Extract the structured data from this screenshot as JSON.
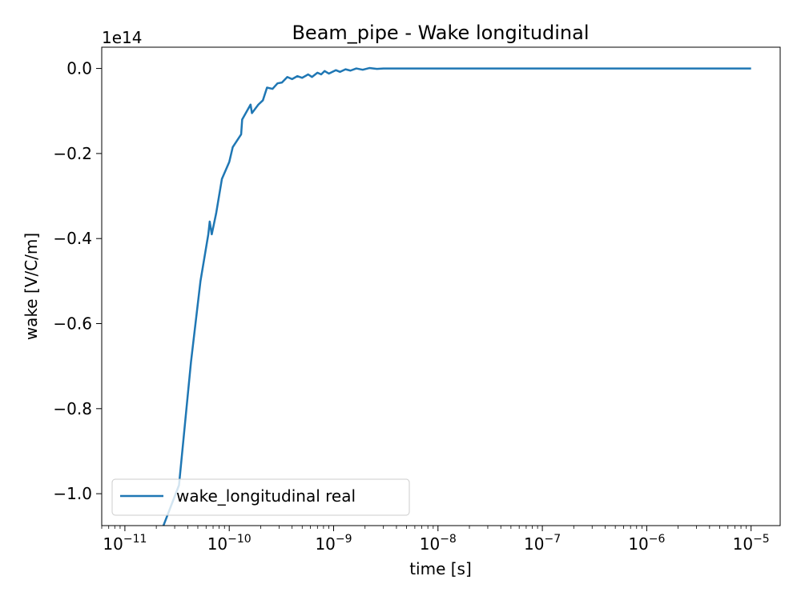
{
  "chart_data": {
    "type": "line",
    "title": "Beam_pipe - Wake longitudinal",
    "xlabel": "time [s]",
    "ylabel": "wake [V/C/m]",
    "x_scale": "log",
    "xlim": [
      6e-12,
      1.9e-05
    ],
    "ylim": [
      -1.075,
      0.05
    ],
    "y_multiplier": "1e14",
    "x_ticks": [
      {
        "value": 1e-11,
        "base": "10",
        "exp": "−11"
      },
      {
        "value": 1e-10,
        "base": "10",
        "exp": "−10"
      },
      {
        "value": 1e-09,
        "base": "10",
        "exp": "−9"
      },
      {
        "value": 1e-08,
        "base": "10",
        "exp": "−8"
      },
      {
        "value": 1e-07,
        "base": "10",
        "exp": "−7"
      },
      {
        "value": 1e-06,
        "base": "10",
        "exp": "−6"
      },
      {
        "value": 1e-05,
        "base": "10",
        "exp": "−5"
      }
    ],
    "y_ticks": [
      {
        "value": 0.0,
        "label": "0.0"
      },
      {
        "value": -0.2,
        "label": "−0.2"
      },
      {
        "value": -0.4,
        "label": "−0.4"
      },
      {
        "value": -0.6,
        "label": "−0.6"
      },
      {
        "value": -0.8,
        "label": "−0.8"
      },
      {
        "value": -1.0,
        "label": "−1.0"
      }
    ],
    "legend_position": "lower-left",
    "series": [
      {
        "name": "wake_longitudinal real",
        "color": "#1f77b4",
        "x": [
          1e-11,
          1.6e-11,
          2.3e-11,
          3.3e-11,
          4.3e-11,
          5.3e-11,
          6.3e-11,
          6.5e-11,
          6.8e-11,
          7.5e-11,
          8.5e-11,
          1e-10,
          1.08e-10,
          1.3e-10,
          1.33e-10,
          1.6e-10,
          1.65e-10,
          1.9e-10,
          2.1e-10,
          2.3e-10,
          2.6e-10,
          2.9e-10,
          3.2e-10,
          3.6e-10,
          4e-10,
          4.5e-10,
          5e-10,
          5.7e-10,
          6.2e-10,
          7e-10,
          7.6e-10,
          8.2e-10,
          9e-10,
          1.05e-09,
          1.15e-09,
          1.3e-09,
          1.45e-09,
          1.65e-09,
          1.9e-09,
          2.2e-09,
          2.6e-09,
          3e-09,
          4e-09,
          6e-09,
          1e-08,
          3e-08,
          1e-07,
          1e-06,
          1e-05
        ],
        "values": [
          -1.15,
          -1.12,
          -1.08,
          -0.98,
          -0.69,
          -0.5,
          -0.39,
          -0.36,
          -0.39,
          -0.34,
          -0.26,
          -0.22,
          -0.185,
          -0.155,
          -0.12,
          -0.085,
          -0.105,
          -0.085,
          -0.075,
          -0.045,
          -0.048,
          -0.035,
          -0.033,
          -0.02,
          -0.025,
          -0.018,
          -0.022,
          -0.014,
          -0.02,
          -0.01,
          -0.014,
          -0.006,
          -0.012,
          -0.004,
          -0.008,
          -0.002,
          -0.005,
          0.0,
          -0.003,
          0.001,
          -0.001,
          0.0,
          0.0,
          0.0,
          0.0,
          0.0,
          0.0,
          0.0,
          0.0
        ]
      }
    ]
  }
}
